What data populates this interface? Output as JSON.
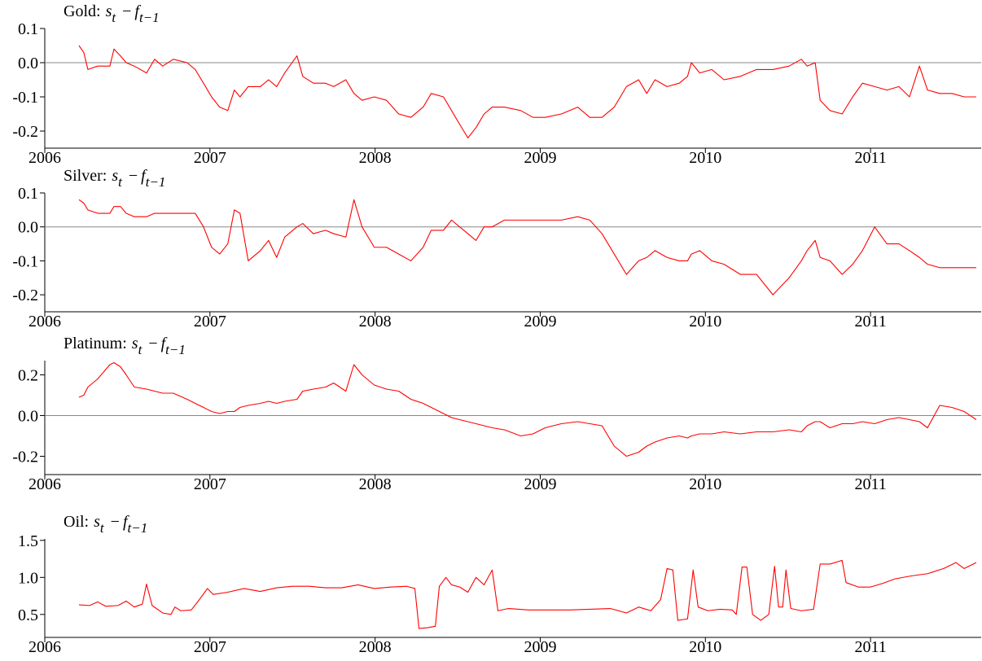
{
  "chart_data": [
    {
      "type": "line",
      "title": "Gold:",
      "title_math": [
        "s",
        "t",
        "−",
        "f",
        "t−1"
      ],
      "color": "#ff0000",
      "zero_line": true,
      "x": [
        2006.207,
        2006.236,
        2006.261,
        2006.32,
        2006.394,
        2006.419,
        2006.458,
        2006.493,
        2006.542,
        2006.616,
        2006.665,
        2006.714,
        2006.778,
        2006.862,
        2006.911,
        2006.961,
        2007.01,
        2007.059,
        2007.108,
        2007.148,
        2007.182,
        2007.232,
        2007.305,
        2007.355,
        2007.404,
        2007.453,
        2007.527,
        2007.562,
        2007.626,
        2007.7,
        2007.749,
        2007.823,
        2007.872,
        2007.921,
        2007.995,
        2008.069,
        2008.143,
        2008.217,
        2008.291,
        2008.34,
        2008.414,
        2008.463,
        2008.512,
        2008.562,
        2008.611,
        2008.66,
        2008.709,
        2008.783,
        2008.882,
        2008.956,
        2009.03,
        2009.128,
        2009.227,
        2009.3,
        2009.374,
        2009.448,
        2009.522,
        2009.596,
        2009.645,
        2009.695,
        2009.768,
        2009.842,
        2009.892,
        2009.915,
        2009.966,
        2010.039,
        2010.113,
        2010.212,
        2010.31,
        2010.409,
        2010.507,
        2010.581,
        2010.616,
        2010.665,
        2010.695,
        2010.754,
        2010.828,
        2010.892,
        2010.951,
        2011.025,
        2011.099,
        2011.172,
        2011.236,
        2011.296,
        2011.345,
        2011.419,
        2011.493,
        2011.567,
        2011.64
      ],
      "values": [
        0.05,
        0.03,
        -0.02,
        -0.01,
        -0.01,
        0.04,
        0.02,
        0,
        -0.01,
        -0.03,
        0.01,
        -0.01,
        0.01,
        0,
        -0.02,
        -0.06,
        -0.1,
        -0.13,
        -0.14,
        -0.08,
        -0.1,
        -0.07,
        -0.07,
        -0.05,
        -0.07,
        -0.03,
        0.02,
        -0.04,
        -0.06,
        -0.06,
        -0.07,
        -0.05,
        -0.09,
        -0.11,
        -0.1,
        -0.11,
        -0.15,
        -0.16,
        -0.13,
        -0.09,
        -0.1,
        -0.14,
        -0.18,
        -0.22,
        -0.19,
        -0.15,
        -0.13,
        -0.13,
        -0.14,
        -0.16,
        -0.16,
        -0.15,
        -0.13,
        -0.16,
        -0.16,
        -0.13,
        -0.07,
        -0.05,
        -0.09,
        -0.05,
        -0.07,
        -0.06,
        -0.04,
        0,
        -0.03,
        -0.02,
        -0.05,
        -0.04,
        -0.02,
        -0.02,
        -0.01,
        0.01,
        -0.01,
        0,
        -0.11,
        -0.14,
        -0.15,
        -0.1,
        -0.06,
        -0.07,
        -0.08,
        -0.07,
        -0.1,
        -0.01,
        -0.08,
        -0.09,
        -0.09,
        -0.1,
        -0.1
      ],
      "xlim": [
        2006,
        2011.67
      ],
      "xticks": [
        2006,
        2007,
        2008,
        2009,
        2010,
        2011
      ],
      "ylim": [
        -0.25,
        0.1
      ],
      "yticks": [
        -0.2,
        -0.1,
        {
          "value": 0,
          "label": "0.0"
        },
        0.1
      ]
    },
    {
      "type": "line",
      "title": "Silver:",
      "title_math": [
        "s",
        "t",
        "−",
        "f",
        "t−1"
      ],
      "color": "#ff0000",
      "zero_line": true,
      "x": [
        2006.207,
        2006.236,
        2006.261,
        2006.32,
        2006.394,
        2006.419,
        2006.458,
        2006.493,
        2006.542,
        2006.616,
        2006.665,
        2006.714,
        2006.778,
        2006.862,
        2006.911,
        2006.961,
        2007.01,
        2007.059,
        2007.108,
        2007.148,
        2007.182,
        2007.232,
        2007.305,
        2007.355,
        2007.404,
        2007.453,
        2007.527,
        2007.562,
        2007.626,
        2007.7,
        2007.749,
        2007.823,
        2007.872,
        2007.921,
        2007.995,
        2008.069,
        2008.143,
        2008.217,
        2008.291,
        2008.34,
        2008.414,
        2008.463,
        2008.512,
        2008.562,
        2008.611,
        2008.66,
        2008.709,
        2008.783,
        2008.882,
        2008.956,
        2009.03,
        2009.128,
        2009.227,
        2009.3,
        2009.374,
        2009.448,
        2009.522,
        2009.596,
        2009.645,
        2009.695,
        2009.768,
        2009.842,
        2009.892,
        2009.915,
        2009.966,
        2010.039,
        2010.113,
        2010.212,
        2010.31,
        2010.409,
        2010.507,
        2010.581,
        2010.616,
        2010.665,
        2010.695,
        2010.754,
        2010.828,
        2010.892,
        2010.951,
        2011.025,
        2011.099,
        2011.172,
        2011.236,
        2011.296,
        2011.345,
        2011.419,
        2011.493,
        2011.567,
        2011.64
      ],
      "values": [
        0.08,
        0.07,
        0.05,
        0.04,
        0.04,
        0.06,
        0.06,
        0.04,
        0.03,
        0.03,
        0.04,
        0.04,
        0.04,
        0.04,
        0.04,
        0,
        -0.06,
        -0.08,
        -0.05,
        0.05,
        0.04,
        -0.1,
        -0.07,
        -0.04,
        -0.09,
        -0.03,
        0,
        0.01,
        -0.02,
        -0.01,
        -0.02,
        -0.03,
        0.08,
        0,
        -0.06,
        -0.06,
        -0.08,
        -0.1,
        -0.06,
        -0.01,
        -0.01,
        0.02,
        0,
        -0.02,
        -0.04,
        0,
        0,
        0.02,
        0.02,
        0.02,
        0.02,
        0.02,
        0.03,
        0.02,
        -0.02,
        -0.08,
        -0.14,
        -0.1,
        -0.09,
        -0.07,
        -0.09,
        -0.1,
        -0.1,
        -0.08,
        -0.07,
        -0.1,
        -0.11,
        -0.14,
        -0.14,
        -0.2,
        -0.15,
        -0.1,
        -0.07,
        -0.04,
        -0.09,
        -0.1,
        -0.14,
        -0.11,
        -0.07,
        0,
        -0.05,
        -0.05,
        -0.07,
        -0.09,
        -0.11,
        -0.12,
        -0.12,
        -0.12,
        -0.12
      ],
      "xlim": [
        2006,
        2011.67
      ],
      "xticks": [
        2006,
        2007,
        2008,
        2009,
        2010,
        2011
      ],
      "ylim": [
        -0.25,
        0.1
      ],
      "yticks": [
        -0.2,
        -0.1,
        {
          "value": 0,
          "label": "0.0"
        },
        0.1
      ]
    },
    {
      "type": "line",
      "title": "Platinum:",
      "title_math": [
        "s",
        "t",
        "−",
        "f",
        "t−1"
      ],
      "color": "#ff0000",
      "zero_line": true,
      "x": [
        2006.207,
        2006.236,
        2006.261,
        2006.32,
        2006.394,
        2006.419,
        2006.458,
        2006.493,
        2006.542,
        2006.616,
        2006.665,
        2006.714,
        2006.778,
        2006.862,
        2006.911,
        2006.961,
        2007.01,
        2007.059,
        2007.108,
        2007.148,
        2007.182,
        2007.232,
        2007.305,
        2007.355,
        2007.404,
        2007.453,
        2007.527,
        2007.562,
        2007.626,
        2007.7,
        2007.749,
        2007.823,
        2007.872,
        2007.921,
        2007.995,
        2008.069,
        2008.143,
        2008.217,
        2008.291,
        2008.34,
        2008.414,
        2008.463,
        2008.512,
        2008.562,
        2008.611,
        2008.66,
        2008.709,
        2008.783,
        2008.882,
        2008.956,
        2009.03,
        2009.128,
        2009.227,
        2009.3,
        2009.374,
        2009.448,
        2009.522,
        2009.596,
        2009.645,
        2009.695,
        2009.768,
        2009.842,
        2009.892,
        2009.915,
        2009.966,
        2010.039,
        2010.113,
        2010.212,
        2010.31,
        2010.409,
        2010.507,
        2010.581,
        2010.616,
        2010.665,
        2010.695,
        2010.754,
        2010.828,
        2010.892,
        2010.951,
        2011.025,
        2011.099,
        2011.172,
        2011.236,
        2011.296,
        2011.345,
        2011.419,
        2011.493,
        2011.567,
        2011.64
      ],
      "values": [
        0.09,
        0.1,
        0.14,
        0.18,
        0.25,
        0.26,
        0.24,
        0.2,
        0.14,
        0.13,
        0.12,
        0.11,
        0.11,
        0.08,
        0.06,
        0.04,
        0.02,
        0.01,
        0.02,
        0.02,
        0.04,
        0.05,
        0.06,
        0.07,
        0.06,
        0.07,
        0.08,
        0.12,
        0.13,
        0.14,
        0.16,
        0.12,
        0.25,
        0.2,
        0.15,
        0.13,
        0.12,
        0.08,
        0.06,
        0.04,
        0.01,
        -0.01,
        -0.02,
        -0.03,
        -0.04,
        -0.05,
        -0.06,
        -0.07,
        -0.1,
        -0.09,
        -0.06,
        -0.04,
        -0.03,
        -0.04,
        -0.05,
        -0.15,
        -0.2,
        -0.18,
        -0.15,
        -0.13,
        -0.11,
        -0.1,
        -0.11,
        -0.1,
        -0.09,
        -0.09,
        -0.08,
        -0.09,
        -0.08,
        -0.08,
        -0.07,
        -0.08,
        -0.05,
        -0.03,
        -0.03,
        -0.06,
        -0.04,
        -0.04,
        -0.03,
        -0.04,
        -0.02,
        -0.01,
        -0.02,
        -0.03,
        -0.06,
        0.05,
        0.04,
        0.02,
        -0.02
      ],
      "xlim": [
        2006,
        2011.67
      ],
      "xticks": [
        2006,
        2007,
        2008,
        2009,
        2010,
        2011
      ],
      "ylim": [
        -0.29,
        0.27
      ],
      "yticks": [
        -0.2,
        {
          "value": 0,
          "label": "0.0"
        },
        0.2
      ]
    },
    {
      "type": "line",
      "title": "Oil:",
      "title_math": [
        "s",
        "t",
        "−",
        "f",
        "t−1"
      ],
      "color": "#ff0000",
      "zero_line": false,
      "x": [
        2006.207,
        2006.271,
        2006.32,
        2006.369,
        2006.443,
        2006.493,
        2006.542,
        2006.591,
        2006.616,
        2006.65,
        2006.714,
        2006.764,
        2006.788,
        2006.823,
        2006.887,
        2006.936,
        2006.985,
        2007.02,
        2007.108,
        2007.207,
        2007.305,
        2007.404,
        2007.502,
        2007.601,
        2007.7,
        2007.798,
        2007.897,
        2007.995,
        2008.094,
        2008.192,
        2008.241,
        2008.266,
        2008.315,
        2008.365,
        2008.389,
        2008.429,
        2008.463,
        2008.512,
        2008.562,
        2008.611,
        2008.66,
        2008.709,
        2008.744,
        2008.808,
        2008.931,
        2009.177,
        2009.424,
        2009.522,
        2009.596,
        2009.67,
        2009.729,
        2009.768,
        2009.803,
        2009.833,
        2009.892,
        2009.926,
        2009.956,
        2010.015,
        2010.089,
        2010.163,
        2010.187,
        2010.222,
        2010.251,
        2010.286,
        2010.335,
        2010.384,
        2010.419,
        2010.443,
        2010.468,
        2010.488,
        2010.517,
        2010.581,
        2010.655,
        2010.695,
        2010.754,
        2010.828,
        2010.852,
        2010.926,
        2011.0,
        2011.074,
        2011.148,
        2011.246,
        2011.345,
        2011.443,
        2011.517,
        2011.567,
        2011.64
      ],
      "values": [
        0.63,
        0.62,
        0.67,
        0.61,
        0.62,
        0.68,
        0.6,
        0.64,
        0.91,
        0.62,
        0.52,
        0.5,
        0.6,
        0.55,
        0.56,
        0.7,
        0.85,
        0.77,
        0.8,
        0.85,
        0.81,
        0.86,
        0.88,
        0.88,
        0.86,
        0.86,
        0.9,
        0.85,
        0.87,
        0.88,
        0.85,
        0.31,
        0.32,
        0.34,
        0.88,
        1.0,
        0.9,
        0.87,
        0.8,
        1.0,
        0.9,
        1.1,
        0.55,
        0.58,
        0.56,
        0.56,
        0.58,
        0.52,
        0.6,
        0.55,
        0.7,
        1.12,
        1.1,
        0.42,
        0.44,
        1.1,
        0.6,
        0.55,
        0.57,
        0.56,
        0.5,
        1.14,
        1.14,
        0.5,
        0.42,
        0.5,
        1.15,
        0.6,
        0.6,
        1.1,
        0.58,
        0.55,
        0.57,
        1.18,
        1.18,
        1.23,
        0.93,
        0.87,
        0.87,
        0.92,
        0.98,
        1.02,
        1.05,
        1.12,
        1.2,
        1.12,
        1.2
      ],
      "xlim": [
        2006,
        2011.67
      ],
      "xticks": [
        2006,
        2007,
        2008,
        2009,
        2010,
        2011
      ],
      "ylim": [
        0.19,
        1.52
      ],
      "yticks": [
        0.5,
        {
          "value": 1,
          "label": "1.0"
        },
        1.5
      ]
    }
  ]
}
